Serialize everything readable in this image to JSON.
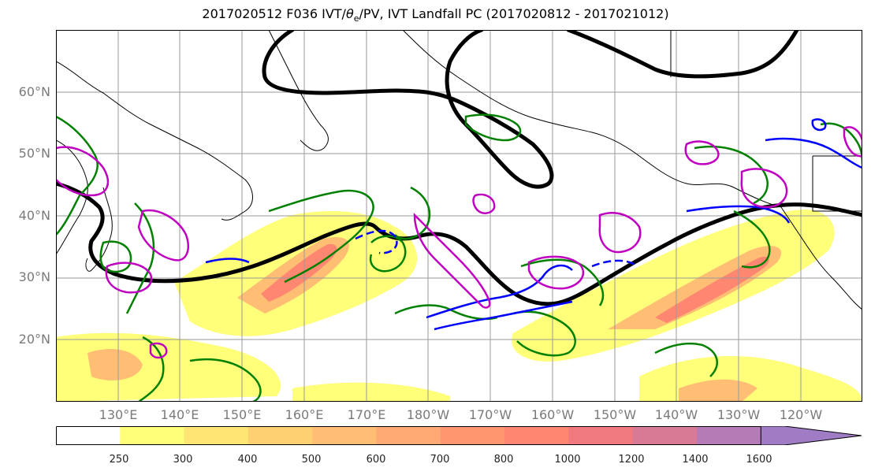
{
  "title_main": "2017020512 F036 IVT/",
  "title_theta": "θ",
  "title_sub": "e",
  "title_rest": "/PV, IVT Landfall PC (2017020812 - 2017021012)",
  "lat_labels": [
    "60°N",
    "50°N",
    "40°N",
    "30°N",
    "20°N"
  ],
  "lon_labels": [
    "130°E",
    "140°E",
    "150°E",
    "160°E",
    "170°E",
    "180°W",
    "170°W",
    "160°W",
    "150°W",
    "140°W",
    "130°W",
    "120°W"
  ],
  "colorbar": {
    "levels": [
      "250",
      "300",
      "400",
      "500",
      "600",
      "700",
      "800",
      "1000",
      "1200",
      "1400",
      "1600"
    ],
    "colors": [
      "#ffffff",
      "#ffff79",
      "#ffe573",
      "#ffd071",
      "#ffbe74",
      "#ffaa74",
      "#ff9670",
      "#ff8670",
      "#f07a80",
      "#d87a95",
      "#b47bb7",
      "#a07cc4"
    ]
  },
  "contour_colors": {
    "height_line": "#000000",
    "theta_e": "#008000",
    "pv": "#0000ff",
    "landfall": "#c000c0"
  }
}
